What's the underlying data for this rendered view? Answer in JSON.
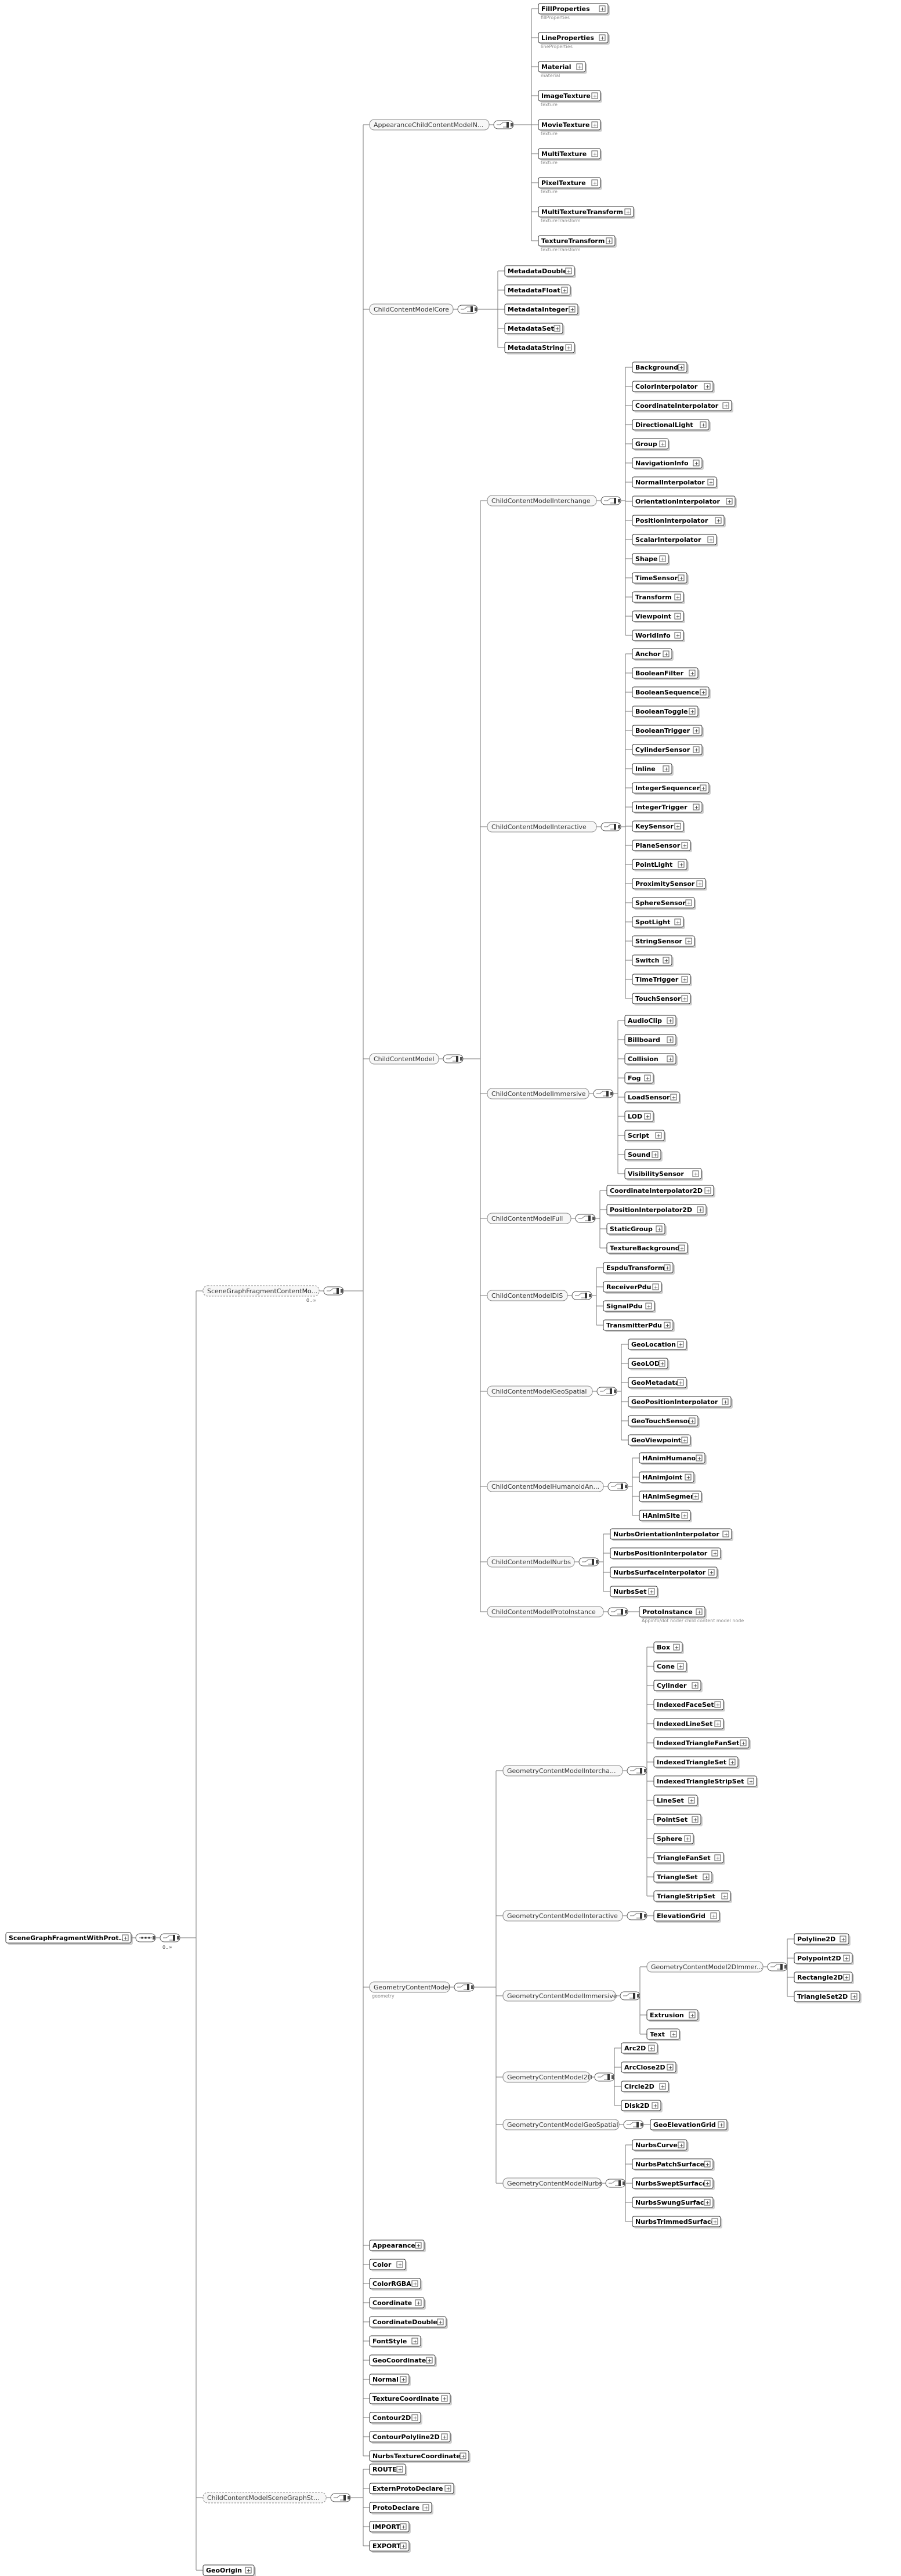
{
  "root": {
    "label": "SceneGraphFragmentWithProt...",
    "compositor_label": "1",
    "occurs": "0..∞"
  },
  "level1": [
    {
      "label": "SceneGraphFragmentContentMo...",
      "occurs": "0..∞",
      "optional": true
    },
    {
      "label": "ChildContentModelSceneGraphSt...",
      "optional": true
    },
    {
      "label": "GeoOrigin"
    }
  ],
  "scenegraph_children": [
    {
      "label": "AppearanceChildContentModelN..."
    },
    {
      "label": "ChildContentModelCore"
    },
    {
      "label": "ChildContentModel"
    },
    {
      "label": "GeometryContentModel",
      "sub": "geometry"
    }
  ],
  "appearance_items": [
    {
      "label": "FillProperties",
      "sub": "fillProperties"
    },
    {
      "label": "LineProperties",
      "sub": "lineProperties"
    },
    {
      "label": "Material",
      "sub": "material"
    },
    {
      "label": "ImageTexture",
      "sub": "texture"
    },
    {
      "label": "MovieTexture",
      "sub": "texture"
    },
    {
      "label": "MultiTexture",
      "sub": "texture"
    },
    {
      "label": "PixelTexture",
      "sub": "texture"
    },
    {
      "label": "MultiTextureTransform",
      "sub": "textureTransform"
    },
    {
      "label": "TextureTransform",
      "sub": "textureTransform"
    }
  ],
  "core_items": [
    "MetadataDouble",
    "MetadataFloat",
    "MetadataInteger",
    "MetadataSet",
    "MetadataString"
  ],
  "child_groups": [
    {
      "label": "ChildContentModelInterchange",
      "items": [
        "Background",
        "ColorInterpolator",
        "CoordinateInterpolator",
        "DirectionalLight",
        "Group",
        "NavigationInfo",
        "NormalInterpolator",
        "OrientationInterpolator",
        "PositionInterpolator",
        "ScalarInterpolator",
        "Shape",
        "TimeSensor",
        "Transform",
        "Viewpoint",
        "WorldInfo"
      ]
    },
    {
      "label": "ChildContentModelInteractive",
      "items": [
        "Anchor",
        "BooleanFilter",
        "BooleanSequencer",
        "BooleanToggle",
        "BooleanTrigger",
        "CylinderSensor",
        "Inline",
        "IntegerSequencer",
        "IntegerTrigger",
        "KeySensor",
        "PlaneSensor",
        "PointLight",
        "ProximitySensor",
        "SphereSensor",
        "SpotLight",
        "StringSensor",
        "Switch",
        "TimeTrigger",
        "TouchSensor"
      ]
    },
    {
      "label": "ChildContentModelImmersive",
      "items": [
        "AudioClip",
        "Billboard",
        "Collision",
        "Fog",
        "LoadSensor",
        "LOD",
        "Script",
        "Sound",
        "VisibilitySensor"
      ]
    },
    {
      "label": "ChildContentModelFull",
      "items": [
        "CoordinateInterpolator2D",
        "PositionInterpolator2D",
        "StaticGroup",
        "TextureBackground"
      ]
    },
    {
      "label": "ChildContentModelDIS",
      "items": [
        "EspduTransform",
        "ReceiverPdu",
        "SignalPdu",
        "TransmitterPdu"
      ]
    },
    {
      "label": "ChildContentModelGeoSpatial",
      "items": [
        "GeoLocation",
        "GeoLOD",
        "GeoMetadata",
        "GeoPositionInterpolator",
        "GeoTouchSensor",
        "GeoViewpoint"
      ]
    },
    {
      "label": "ChildContentModelHumanoidAn...",
      "items": [
        "HAnimHumanoid",
        "HAnimJoint",
        "HAnimSegment",
        "HAnimSite"
      ]
    },
    {
      "label": "ChildContentModelNurbs",
      "items": [
        "NurbsOrientationInterpolator",
        "NurbsPositionInterpolator",
        "NurbsSurfaceInterpolator",
        "NurbsSet"
      ]
    },
    {
      "label": "ChildContentModelProtoInstance",
      "items": [
        "ProtoInstance"
      ],
      "item_sub": "Appinfo/dot node/ child content model node"
    }
  ],
  "geometry_groups": [
    {
      "label": "GeometryContentModelIntercha...",
      "items": [
        "Box",
        "Cone",
        "Cylinder",
        "IndexedFaceSet",
        "IndexedLineSet",
        "IndexedTriangleFanSet",
        "IndexedTriangleSet",
        "IndexedTriangleStripSet",
        "LineSet",
        "PointSet",
        "Sphere",
        "TriangleFanSet",
        "TriangleSet",
        "TriangleStripSet"
      ]
    },
    {
      "label": "GeometryContentModelInteractive",
      "items": [
        "ElevationGrid"
      ]
    },
    {
      "label": "GeometryContentModelImmersive",
      "items": [
        "Extrusion",
        "Text"
      ],
      "subgroup": {
        "label": "GeometryContentModel2DImmer...",
        "items": [
          "Polyline2D",
          "Polypoint2D",
          "Rectangle2D",
          "TriangleSet2D"
        ]
      }
    },
    {
      "label": "GeometryContentModel2D",
      "items": [
        "Arc2D",
        "ArcClose2D",
        "Circle2D",
        "Disk2D"
      ]
    },
    {
      "label": "GeometryContentModelGeoSpatial",
      "items": [
        "GeoElevationGrid"
      ]
    },
    {
      "label": "GeometryContentModelNurbs",
      "items": [
        "NurbsCurve",
        "NurbsPatchSurface",
        "NurbsSweptSurface",
        "NurbsSwungSurface",
        "NurbsTrimmedSurface"
      ]
    }
  ],
  "scenegraph_tail_items": [
    "Appearance",
    "Color",
    "ColorRGBA",
    "Coordinate",
    "CoordinateDouble",
    "FontStyle",
    "GeoCoordinate",
    "Normal",
    "TextureCoordinate",
    "Contour2D",
    "ContourPolyline2D",
    "NurbsTextureCoordinate"
  ],
  "statement_items": [
    "ROUTE",
    "ExternProtoDeclare",
    "ProtoDeclare",
    "IMPORT",
    "EXPORT"
  ],
  "occurrence_label": "0..∞",
  "colors": {
    "node_border": "#333333",
    "group_fill": "#f7f7f7",
    "wire": "#777777",
    "background": "#ffffff"
  }
}
